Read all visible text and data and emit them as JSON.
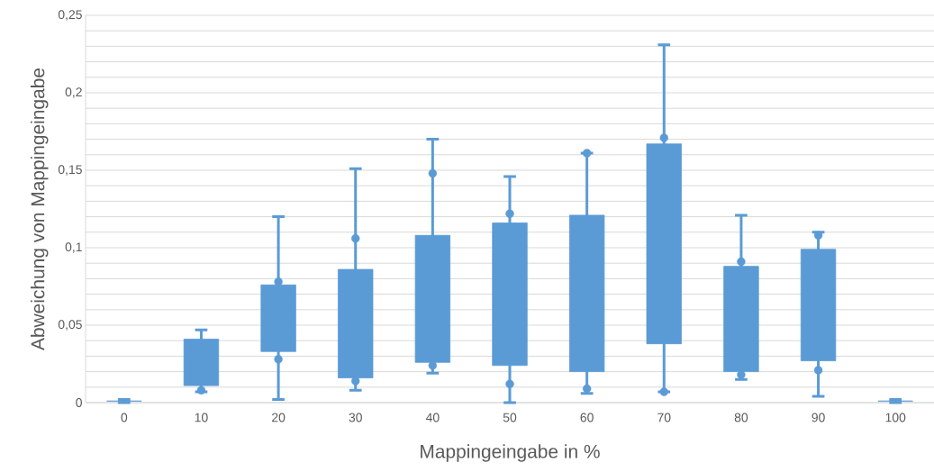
{
  "chart_data": {
    "type": "candlestick",
    "xlabel": "Mappingeingabe in %",
    "ylabel": "Abweichung von Mappingeingabe",
    "categories": [
      "0",
      "10",
      "20",
      "30",
      "40",
      "50",
      "60",
      "70",
      "80",
      "90",
      "100"
    ],
    "ohlc": [
      [
        0.001,
        0.002,
        0,
        0.001
      ],
      [
        0.011,
        0.047,
        0.007,
        0.041
      ],
      [
        0.033,
        0.12,
        0.002,
        0.076
      ],
      [
        0.016,
        0.151,
        0.008,
        0.086
      ],
      [
        0.026,
        0.17,
        0.019,
        0.108
      ],
      [
        0.024,
        0.146,
        0,
        0.116
      ],
      [
        0.02,
        0.161,
        0.006,
        0.121
      ],
      [
        0.038,
        0.231,
        0.007,
        0.167
      ],
      [
        0.02,
        0.121,
        0.015,
        0.088
      ],
      [
        0.027,
        0.11,
        0.004,
        0.099
      ],
      [
        0.001,
        0.002,
        0,
        0.001
      ]
    ],
    "color": "#5b9bd5",
    "series": [
      {
        "type": "scatter",
        "color": "#5b9bd5",
        "x": [
          "0",
          "10",
          "20",
          "30",
          "40",
          "50",
          "60",
          "70",
          "80",
          "90",
          "100"
        ],
        "values": [
          null,
          null,
          0.078,
          0.106,
          0.148,
          0.122,
          0.161,
          0.171,
          0.091,
          0.108,
          null
        ]
      },
      {
        "type": "scatter",
        "color": "#5b9bd5",
        "x": [
          "0",
          "10",
          "20",
          "30",
          "40",
          "50",
          "60",
          "70",
          "80",
          "90",
          "100"
        ],
        "values": [
          null,
          0.008,
          0.028,
          0.014,
          0.024,
          0.012,
          0.009,
          0.007,
          0.018,
          0.021,
          null
        ]
      }
    ],
    "marker": "circle",
    "ylim": [
      0,
      0.25
    ],
    "yticks": [
      0,
      {
        "value": 0.05,
        "label": "0,05"
      },
      {
        "value": 0.1,
        "label": "0,1"
      },
      {
        "value": 0.15,
        "label": "0,15"
      },
      {
        "value": 0.2,
        "label": "0,2"
      },
      {
        "value": 0.25,
        "label": "0,25"
      }
    ],
    "grid": "y"
  }
}
